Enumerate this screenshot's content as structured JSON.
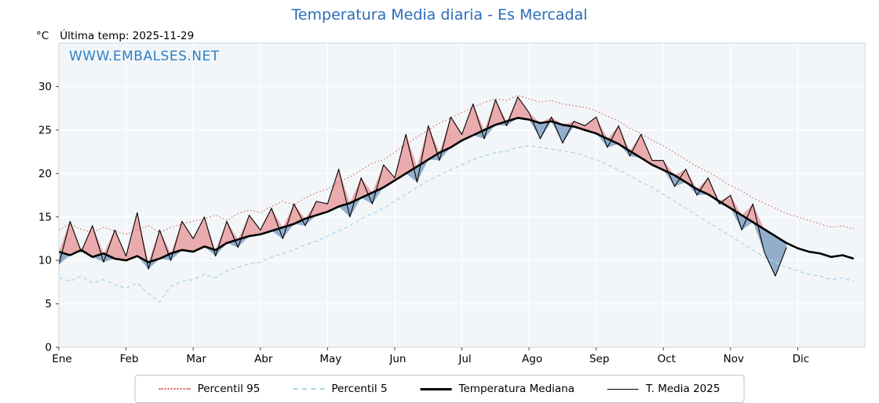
{
  "page": {
    "title": "Temperatura Media diaria - Es Mercadal",
    "unit": "°C",
    "last_temp": "Última temp: 2025-11-29",
    "watermark": "WWW.EMBALSES.NET"
  },
  "colors": {
    "title": "#2b6cb8",
    "watermark": "#2f7fc1",
    "plot_bg": "#f2f6f9",
    "grid": "#ffffff",
    "spine": "#cfd6dc",
    "tick": "#444444",
    "label": "#000000",
    "fill_above": "rgba(221,80,80,0.45)",
    "fill_below": "rgba(70,115,165,0.55)"
  },
  "chart_data": {
    "type": "line",
    "title": "Temperatura Media diaria - Es Mercadal",
    "ylabel": "°C",
    "annotation": "Última temp: 2025-11-29",
    "watermark": "WWW.EMBALSES.NET",
    "legend_position": "bottom",
    "grid": true,
    "ylim": [
      0,
      35
    ],
    "yticks": [
      0,
      5,
      10,
      15,
      20,
      25,
      30
    ],
    "x_tick_labels": [
      "Ene",
      "Feb",
      "Mar",
      "Abr",
      "May",
      "Jun",
      "Jul",
      "Ago",
      "Sep",
      "Oct",
      "Nov",
      "Dic"
    ],
    "points_per_month": 6,
    "series": [
      {
        "name": "Percentil 95",
        "style": "dotted",
        "color": "#dd5555",
        "width": 1,
        "values": [
          13.5,
          14.2,
          13.6,
          13.2,
          13.8,
          13.4,
          13.0,
          13.5,
          14.0,
          13.2,
          13.8,
          14.2,
          14.5,
          14.8,
          15.2,
          14.6,
          15.4,
          15.8,
          15.5,
          16.2,
          16.8,
          16.4,
          17.2,
          17.8,
          18.2,
          19.0,
          19.6,
          20.4,
          21.2,
          21.6,
          22.4,
          23.4,
          24.2,
          25.0,
          25.8,
          26.4,
          27.0,
          27.6,
          28.2,
          28.6,
          28.4,
          29.0,
          28.6,
          28.2,
          28.4,
          28.0,
          27.8,
          27.6,
          27.2,
          26.6,
          26.0,
          25.2,
          24.6,
          23.8,
          23.2,
          22.4,
          21.6,
          20.8,
          20.2,
          19.4,
          18.6,
          18.0,
          17.2,
          16.6,
          16.0,
          15.4,
          15.0,
          14.6,
          14.2,
          13.8,
          14.0,
          13.6
        ]
      },
      {
        "name": "Percentil 5",
        "style": "dashed",
        "color": "#a6d5e8",
        "width": 1.2,
        "values": [
          8.0,
          7.6,
          8.2,
          7.4,
          7.8,
          7.2,
          6.8,
          7.4,
          6.2,
          5.2,
          7.0,
          7.6,
          7.8,
          8.4,
          8.0,
          8.8,
          9.2,
          9.6,
          9.8,
          10.4,
          10.8,
          11.2,
          11.8,
          12.2,
          12.8,
          13.4,
          14.0,
          14.8,
          15.4,
          16.0,
          16.8,
          17.6,
          18.4,
          19.2,
          19.8,
          20.4,
          21.0,
          21.6,
          22.0,
          22.4,
          22.6,
          23.0,
          23.2,
          23.0,
          22.8,
          22.6,
          22.4,
          22.0,
          21.6,
          21.0,
          20.4,
          19.8,
          19.0,
          18.4,
          17.6,
          16.8,
          16.0,
          15.2,
          14.4,
          13.6,
          12.8,
          12.0,
          11.2,
          10.4,
          9.8,
          9.2,
          8.8,
          8.4,
          8.2,
          7.8,
          8.0,
          7.6
        ]
      },
      {
        "name": "Temperatura Mediana",
        "style": "solid-thick",
        "color": "#000000",
        "width": 2.6,
        "values": [
          11.0,
          10.6,
          11.2,
          10.4,
          10.8,
          10.2,
          10.0,
          10.5,
          9.8,
          10.2,
          10.8,
          11.2,
          11.0,
          11.6,
          11.2,
          12.0,
          12.4,
          12.8,
          13.0,
          13.4,
          13.8,
          14.2,
          14.8,
          15.2,
          15.6,
          16.2,
          16.6,
          17.2,
          17.8,
          18.4,
          19.2,
          20.0,
          20.8,
          21.6,
          22.4,
          23.0,
          23.8,
          24.4,
          25.0,
          25.6,
          26.0,
          26.4,
          26.2,
          25.8,
          26.0,
          25.6,
          25.4,
          25.0,
          24.6,
          24.0,
          23.4,
          22.6,
          21.8,
          21.0,
          20.4,
          19.8,
          19.0,
          18.2,
          17.6,
          16.8,
          16.0,
          15.2,
          14.4,
          13.6,
          12.8,
          12.0,
          11.4,
          11.0,
          10.8,
          10.4,
          10.6,
          10.2
        ]
      },
      {
        "name": "T. Media 2025",
        "style": "solid-thin",
        "color": "#000000",
        "width": 1.1,
        "values": [
          9.5,
          14.5,
          11.0,
          14.0,
          9.8,
          13.5,
          10.5,
          15.5,
          9.0,
          13.5,
          10.0,
          14.5,
          12.5,
          15.0,
          10.5,
          14.5,
          11.5,
          15.2,
          13.5,
          16.0,
          12.5,
          16.5,
          14.0,
          16.8,
          16.5,
          20.5,
          15.0,
          19.5,
          16.5,
          21.0,
          19.5,
          24.5,
          19.0,
          25.5,
          21.5,
          26.5,
          24.5,
          28.0,
          24.0,
          28.5,
          25.5,
          28.8,
          27.0,
          24.0,
          26.5,
          23.5,
          26.0,
          25.5,
          26.5,
          23.0,
          25.5,
          22.0,
          24.5,
          21.5,
          21.5,
          18.5,
          20.5,
          17.5,
          19.5,
          16.5,
          17.5,
          13.5,
          16.5,
          11.0,
          8.2,
          11.5,
          null,
          null,
          null,
          null,
          null,
          null
        ]
      }
    ]
  }
}
